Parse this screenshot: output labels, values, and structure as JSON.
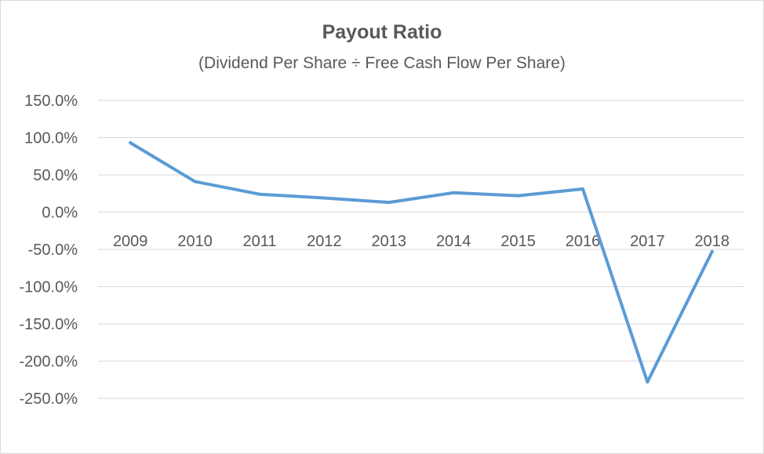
{
  "chart_data": {
    "type": "line",
    "title": "Payout Ratio",
    "subtitle": "(Dividend Per Share ÷ Free Cash Flow Per Share)",
    "xlabel": "",
    "ylabel": "",
    "categories": [
      "2009",
      "2010",
      "2011",
      "2012",
      "2013",
      "2014",
      "2015",
      "2016",
      "2017",
      "2018"
    ],
    "series": [
      {
        "values": [
          93,
          41,
          24,
          19,
          13,
          26,
          22,
          31,
          -228,
          -53
        ]
      }
    ],
    "ylim": [
      -250,
      150
    ],
    "yticks": [
      150,
      100,
      50,
      0,
      -50,
      -100,
      -150,
      -200,
      -250
    ],
    "ytick_labels": [
      "150.0%",
      "100.0%",
      "50.0%",
      "0.0%",
      "-50.0%",
      "-100.0%",
      "-150.0%",
      "-200.0%",
      "-250.0%"
    ],
    "grid": true,
    "legend": "none",
    "colors": {
      "line": "#5b9bd5",
      "grid": "#d9d9d9",
      "text": "#595959"
    }
  }
}
